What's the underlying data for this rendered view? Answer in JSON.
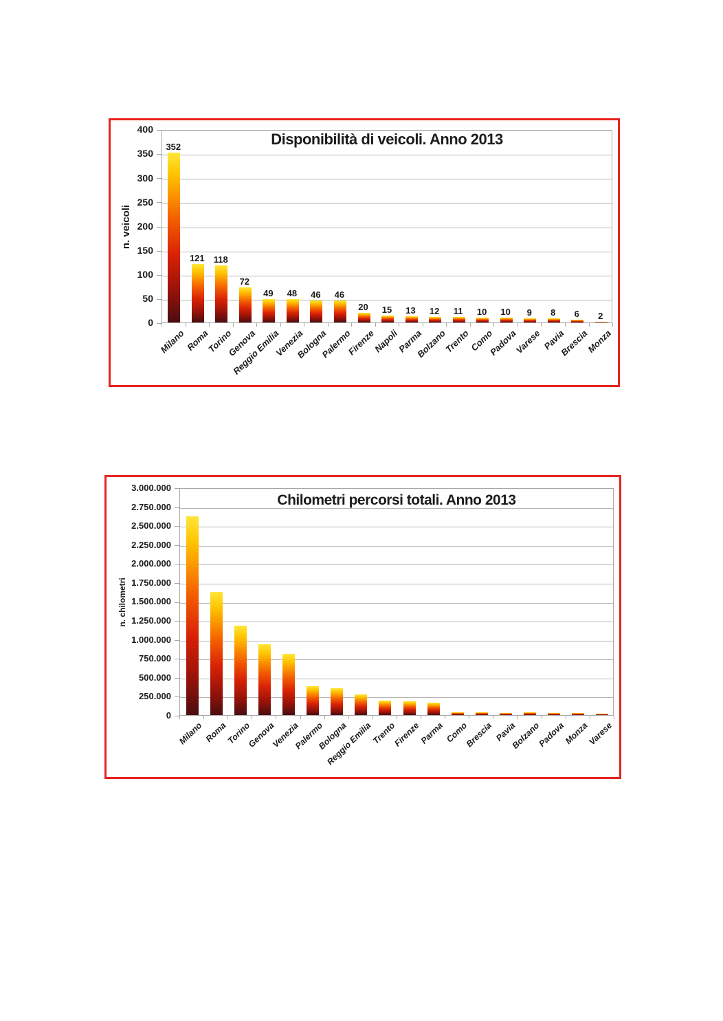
{
  "page": {
    "background": "#ffffff",
    "frame_color": "#e8231e",
    "grid_color": "#b5b5b5",
    "plot_border_color": "#a6a6a6",
    "text_color": "#1c1c1c",
    "bar_gradient_stops": [
      "#4b0d10 0%",
      "#9c1309 20%",
      "#d92206 40%",
      "#f35c00 60%",
      "#fb9500 75%",
      "#ffc400 87%",
      "#ffe63a 100%"
    ]
  },
  "chart_data": [
    {
      "type": "bar",
      "title": "Disponibilità di veicoli. Anno 2013",
      "xlabel": "",
      "ylabel": "n. veicoli",
      "categories": [
        "Milano",
        "Roma",
        "Torino",
        "Genova",
        "Reggio Emilia",
        "Venezia",
        "Bologna",
        "Palermo",
        "Firenze",
        "Napoli",
        "Parma",
        "Bolzano",
        "Trento",
        "Como",
        "Padova",
        "Varese",
        "Pavia",
        "Brescia",
        "Monza"
      ],
      "values": [
        352,
        121,
        118,
        72,
        49,
        48,
        46,
        46,
        20,
        15,
        13,
        12,
        11,
        10,
        10,
        9,
        8,
        6,
        2
      ],
      "show_value_labels": true,
      "ylim": [
        0,
        400
      ],
      "ytick_values": [
        0,
        50,
        100,
        150,
        200,
        250,
        300,
        350,
        400
      ],
      "ytick_labels": [
        "0",
        "50",
        "100",
        "150",
        "200",
        "250",
        "300",
        "350",
        "400"
      ],
      "grid": true,
      "legend": "none"
    },
    {
      "type": "bar",
      "title": "Chilometri percorsi totali. Anno 2013",
      "xlabel": "",
      "ylabel": "n. chilometri",
      "categories": [
        "Milano",
        "Roma",
        "Torino",
        "Genova",
        "Venezia",
        "Palermo",
        "Bologna",
        "Reggio Emilia",
        "Trento",
        "Firenze",
        "Parma",
        "Como",
        "Brescia",
        "Pavia",
        "Bolzano",
        "Padova",
        "Monza",
        "Varese"
      ],
      "values": [
        2620000,
        1620000,
        1180000,
        930000,
        810000,
        380000,
        350000,
        275000,
        195000,
        178000,
        168000,
        40000,
        33000,
        30000,
        33000,
        25000,
        25000,
        18000
      ],
      "show_value_labels": false,
      "ylim": [
        0,
        3000000
      ],
      "ytick_values": [
        0,
        250000,
        500000,
        750000,
        1000000,
        1250000,
        1500000,
        1750000,
        2000000,
        2250000,
        2500000,
        2750000,
        3000000
      ],
      "ytick_labels": [
        "0",
        "250.000",
        "500.000",
        "750.000",
        "1.000.000",
        "1.250.000",
        "1.500.000",
        "1.750.000",
        "2.000.000",
        "2.250.000",
        "2.500.000",
        "2.750.000",
        "3.000.000"
      ],
      "grid": true,
      "legend": "none"
    }
  ]
}
